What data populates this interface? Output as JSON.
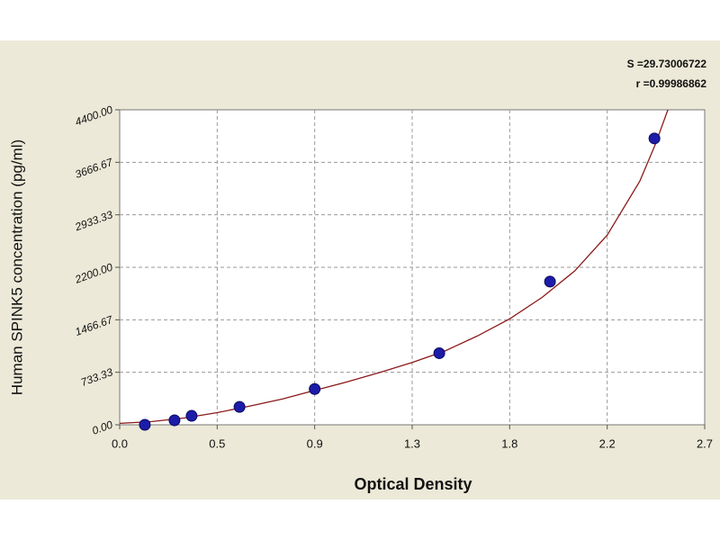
{
  "chart_data": {
    "type": "scatter",
    "x_label": "Optical Density",
    "y_label": "Human SPINK5 concentration (pg/ml)",
    "annotations": [
      "S =29.73006722",
      "r =0.99986862"
    ],
    "x": [
      0.116,
      0.253,
      0.332,
      0.553,
      0.9,
      1.475,
      1.986,
      2.468
    ],
    "values": [
      0,
      62.5,
      125,
      250,
      500,
      1000,
      2000,
      4000
    ],
    "color": "#1c1ca8",
    "curve": {
      "color": "#8b1a1a",
      "x": [
        0,
        0.15,
        0.3,
        0.45,
        0.6,
        0.75,
        0.9,
        1.05,
        1.2,
        1.35,
        1.5,
        1.65,
        1.8,
        1.95,
        2.1,
        2.25,
        2.4,
        2.47,
        2.53
      ],
      "y": [
        20,
        45,
        95,
        170,
        260,
        360,
        480,
        600,
        730,
        870,
        1030,
        1240,
        1480,
        1780,
        2150,
        2650,
        3400,
        3900,
        4400
      ]
    },
    "xlim": [
      0,
      2.7
    ],
    "xticks": [
      {
        "value": 0,
        "label": "0.0"
      },
      {
        "value": 0.45,
        "label": "0.5"
      },
      0.9,
      {
        "value": 1.35,
        "label": "1.3"
      },
      1.8,
      {
        "value": 2.25,
        "label": "2.2"
      },
      2.7
    ],
    "ylim": [
      0,
      4400
    ],
    "yticks": [
      {
        "value": 0,
        "label": "0.00"
      },
      {
        "value": 733.33,
        "label": "733.33"
      },
      {
        "value": 1466.67,
        "label": "1466.67"
      },
      {
        "value": 2200,
        "label": "2200.00"
      },
      {
        "value": 2933.33,
        "label": "2933.33"
      },
      {
        "value": 3666.67,
        "label": "3666.67"
      },
      {
        "value": 4400,
        "label": "4400.00"
      }
    ],
    "grid": true
  }
}
